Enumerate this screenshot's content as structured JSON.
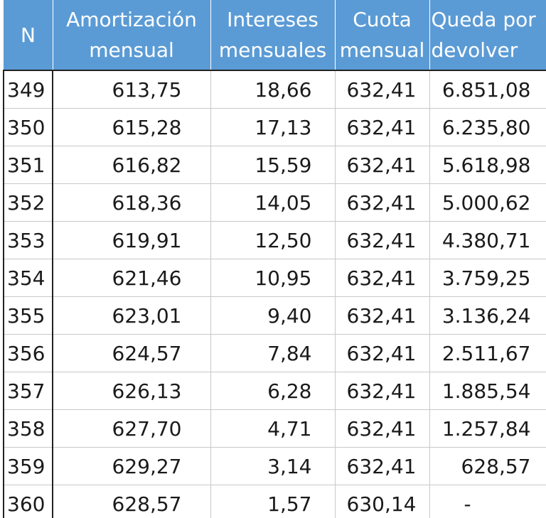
{
  "table": {
    "headers": {
      "n": "N",
      "amortizacion": [
        "Amortización",
        "mensual"
      ],
      "intereses": [
        "Intereses",
        "mensuales"
      ],
      "cuota": [
        "Cuota",
        "mensual"
      ],
      "queda": [
        "Queda por",
        "devolver"
      ]
    },
    "rows": [
      {
        "n": "349",
        "amortizacion": "613,75",
        "intereses": "18,66",
        "cuota": "632,41",
        "queda": "6.851,08"
      },
      {
        "n": "350",
        "amortizacion": "615,28",
        "intereses": "17,13",
        "cuota": "632,41",
        "queda": "6.235,80"
      },
      {
        "n": "351",
        "amortizacion": "616,82",
        "intereses": "15,59",
        "cuota": "632,41",
        "queda": "5.618,98"
      },
      {
        "n": "352",
        "amortizacion": "618,36",
        "intereses": "14,05",
        "cuota": "632,41",
        "queda": "5.000,62"
      },
      {
        "n": "353",
        "amortizacion": "619,91",
        "intereses": "12,50",
        "cuota": "632,41",
        "queda": "4.380,71"
      },
      {
        "n": "354",
        "amortizacion": "621,46",
        "intereses": "10,95",
        "cuota": "632,41",
        "queda": "3.759,25"
      },
      {
        "n": "355",
        "amortizacion": "623,01",
        "intereses": "9,40",
        "cuota": "632,41",
        "queda": "3.136,24"
      },
      {
        "n": "356",
        "amortizacion": "624,57",
        "intereses": "7,84",
        "cuota": "632,41",
        "queda": "2.511,67"
      },
      {
        "n": "357",
        "amortizacion": "626,13",
        "intereses": "6,28",
        "cuota": "632,41",
        "queda": "1.885,54"
      },
      {
        "n": "358",
        "amortizacion": "627,70",
        "intereses": "4,71",
        "cuota": "632,41",
        "queda": "1.257,84"
      },
      {
        "n": "359",
        "amortizacion": "629,27",
        "intereses": "3,14",
        "cuota": "632,41",
        "queda": "628,57"
      },
      {
        "n": "360",
        "amortizacion": "628,57",
        "intereses": "1,57",
        "cuota": "630,14",
        "queda": "-"
      }
    ]
  },
  "colors": {
    "header_bg": "#5b9bd5",
    "header_text": "#ffffff",
    "cell_text": "#1a1a1a",
    "grid": "#c8c8c8",
    "outline": "#222222"
  }
}
